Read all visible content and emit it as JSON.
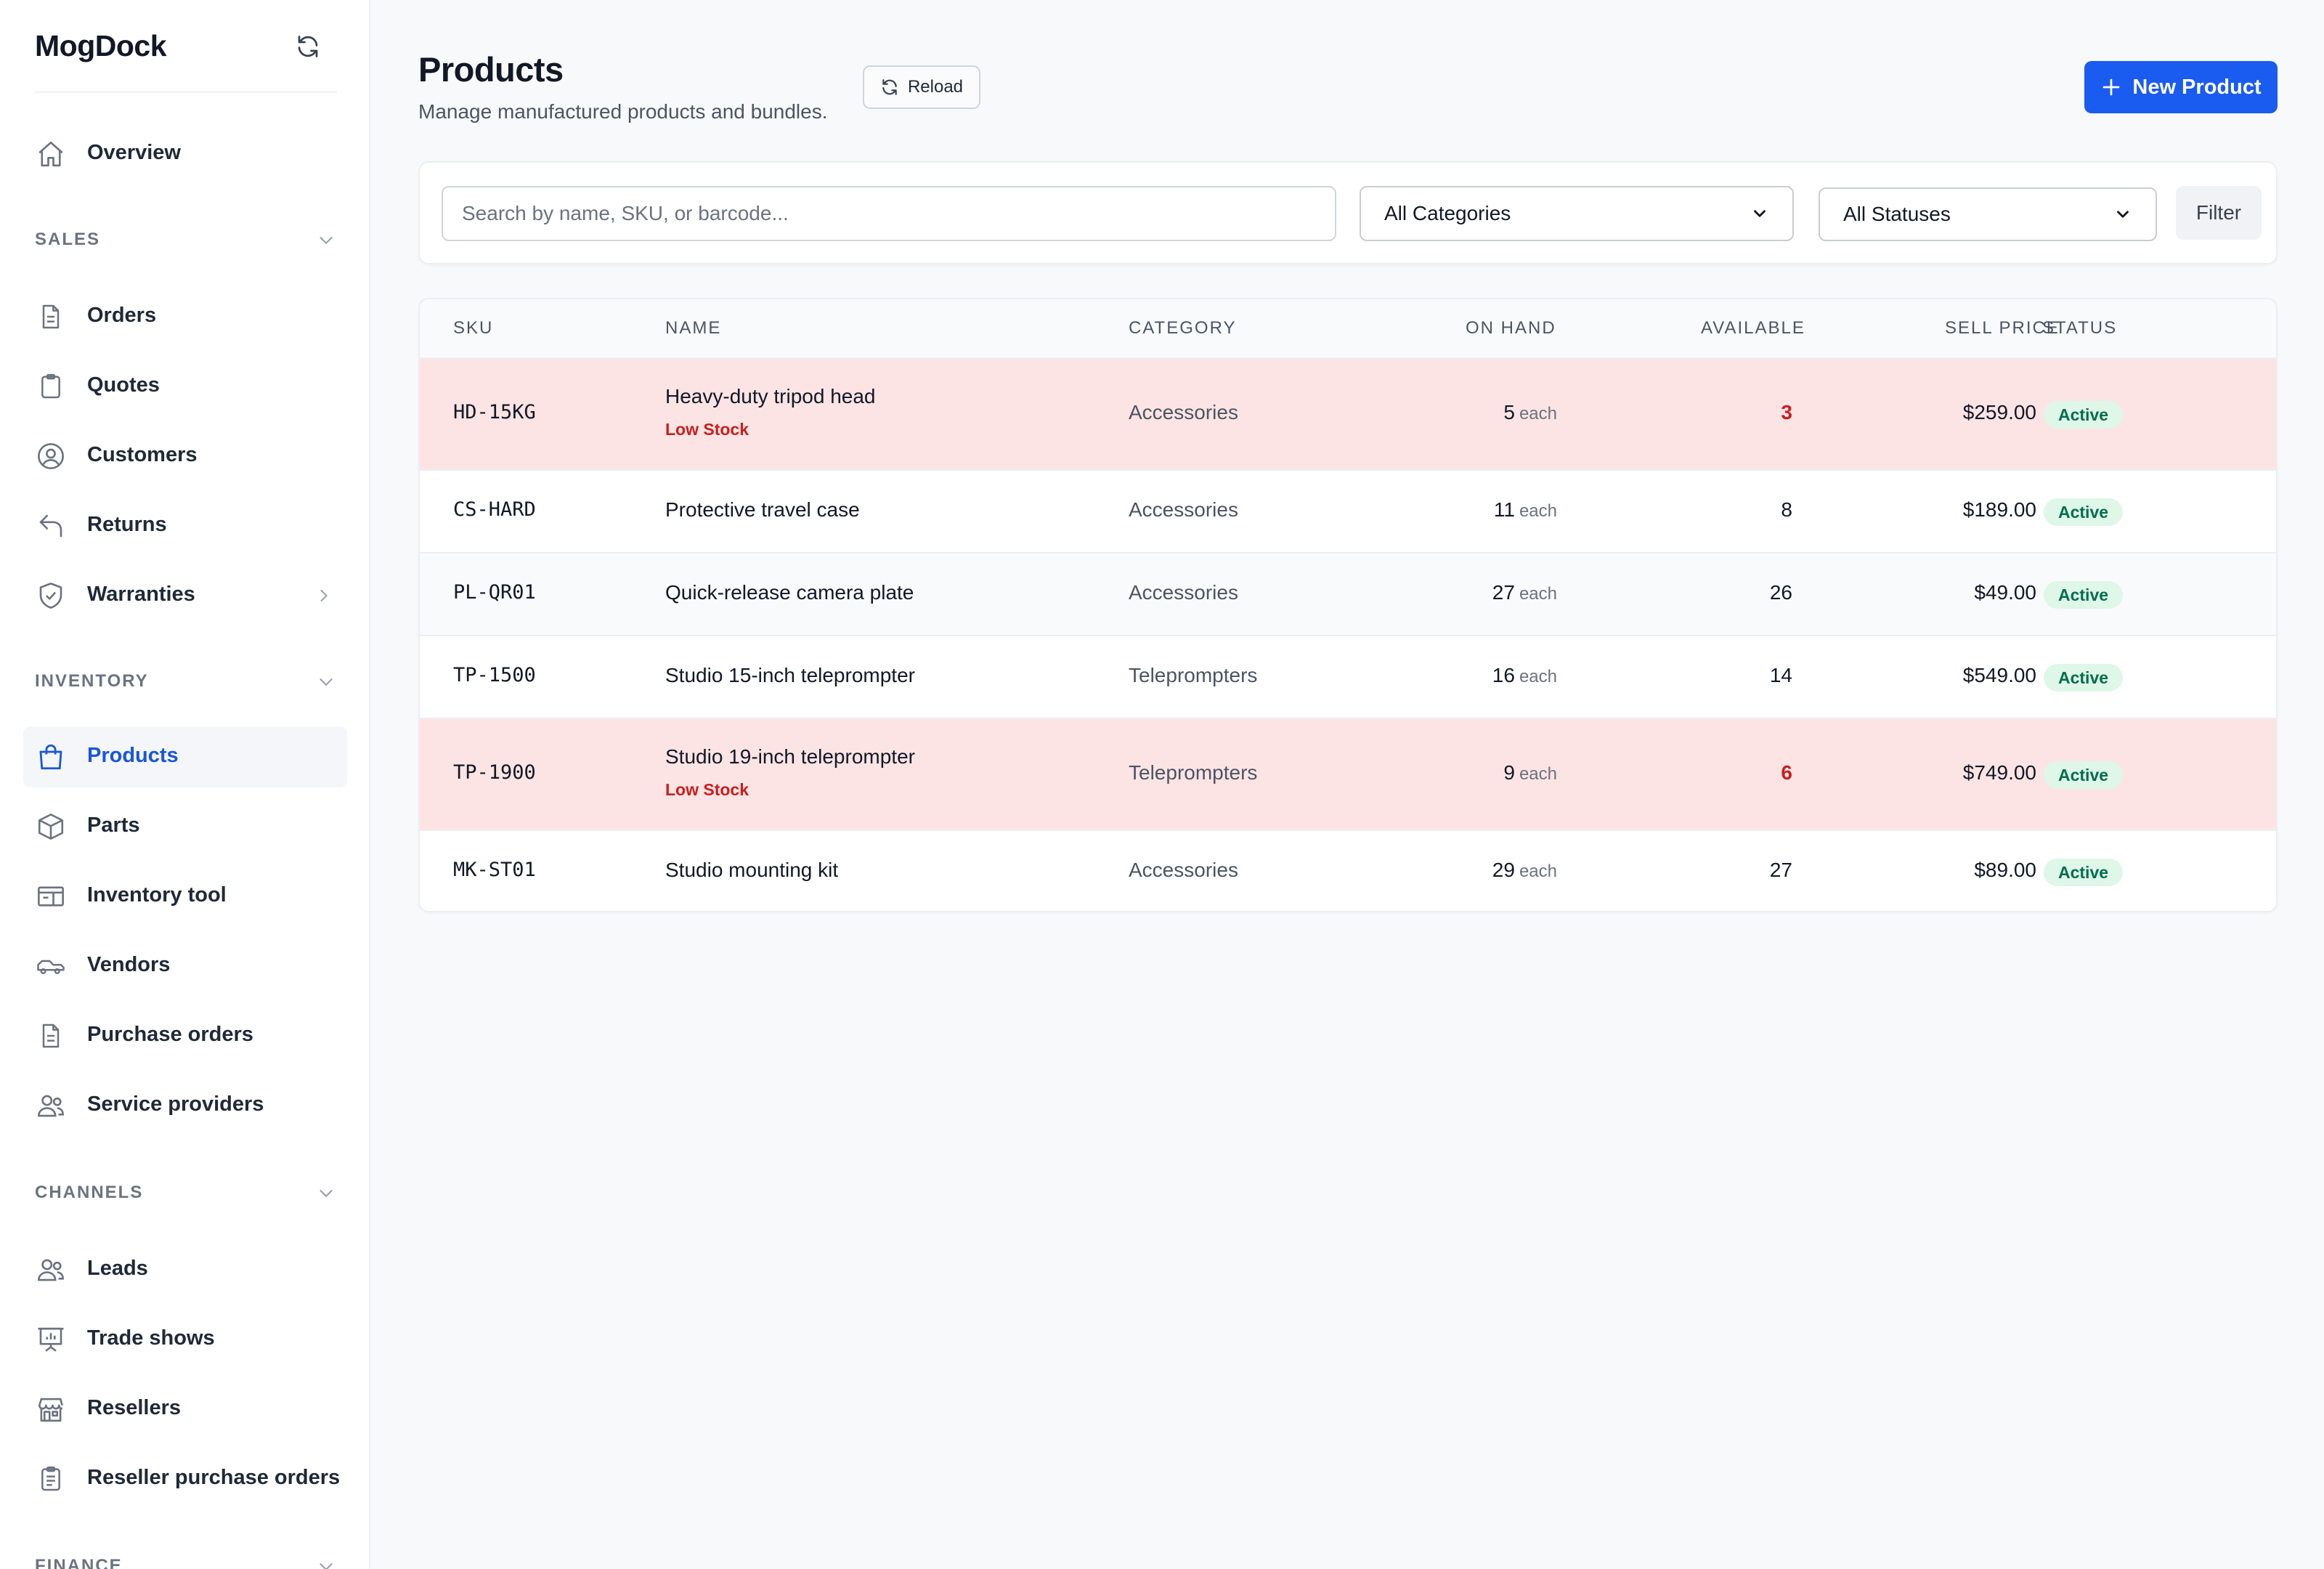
{
  "app": {
    "name": "MogDock"
  },
  "sidebar": {
    "overview": "Overview",
    "sections": {
      "sales": "SALES",
      "inventory": "INVENTORY",
      "channels": "CHANNELS",
      "finance": "FINANCE"
    },
    "sales_items": [
      "Orders",
      "Quotes",
      "Customers",
      "Returns",
      "Warranties"
    ],
    "inventory_items": [
      "Products",
      "Parts",
      "Inventory tool",
      "Vendors",
      "Purchase orders",
      "Service providers"
    ],
    "channels_items": [
      "Leads",
      "Trade shows",
      "Resellers",
      "Reseller purchase orders"
    ],
    "active_item": "Products"
  },
  "header": {
    "title": "Products",
    "subtitle": "Manage manufactured products and bundles.",
    "reload_label": "Reload",
    "new_label": "New Product"
  },
  "filters": {
    "search_placeholder": "Search by name, SKU, or barcode...",
    "category_value": "All Categories",
    "status_value": "All Statuses",
    "filter_label": "Filter"
  },
  "table": {
    "columns": [
      "SKU",
      "NAME",
      "CATEGORY",
      "ON HAND",
      "AVAILABLE",
      "SELL PRICE",
      "STATUS"
    ],
    "unit_label": "each",
    "low_stock_label": "Low Stock",
    "rows": [
      {
        "sku": "HD-15KG",
        "name": "Heavy-duty tripod head",
        "category": "Accessories",
        "on_hand": "5",
        "available": "3",
        "price": "$259.00",
        "status": "Active",
        "low_stock": true
      },
      {
        "sku": "CS-HARD",
        "name": "Protective travel case",
        "category": "Accessories",
        "on_hand": "11",
        "available": "8",
        "price": "$189.00",
        "status": "Active",
        "low_stock": false
      },
      {
        "sku": "PL-QR01",
        "name": "Quick-release camera plate",
        "category": "Accessories",
        "on_hand": "27",
        "available": "26",
        "price": "$49.00",
        "status": "Active",
        "low_stock": false
      },
      {
        "sku": "TP-1500",
        "name": "Studio 15-inch teleprompter",
        "category": "Teleprompters",
        "on_hand": "16",
        "available": "14",
        "price": "$549.00",
        "status": "Active",
        "low_stock": false
      },
      {
        "sku": "TP-1900",
        "name": "Studio 19-inch teleprompter",
        "category": "Teleprompters",
        "on_hand": "9",
        "available": "6",
        "price": "$749.00",
        "status": "Active",
        "low_stock": true
      },
      {
        "sku": "MK-ST01",
        "name": "Studio mounting kit",
        "category": "Accessories",
        "on_hand": "29",
        "available": "27",
        "price": "$89.00",
        "status": "Active",
        "low_stock": false
      }
    ]
  },
  "colors": {
    "accent": "#1a5bf0",
    "active_nav": "#1a56db",
    "low_stock_row": "#fde4e4",
    "low_stock_text": "#c81e1e",
    "badge_bg": "#def7e8",
    "badge_text": "#046c4e"
  },
  "icons": {
    "brand_refresh": "refresh-icon",
    "overview": "home-icon",
    "orders": "document-icon",
    "quotes": "clipboard-icon",
    "customers": "user-circle-icon",
    "returns": "return-arrow-icon",
    "warranties": "shield-check-icon",
    "products": "shopping-bag-icon",
    "parts": "cube-icon",
    "inventory_tool": "inventory-tray-icon",
    "vendors": "truck-icon",
    "purchase_orders": "document-icon",
    "service_providers": "users-icon",
    "leads": "users-icon",
    "trade_shows": "presentation-chart-icon",
    "resellers": "storefront-icon",
    "reseller_purchase_orders": "clipboard-list-icon"
  }
}
